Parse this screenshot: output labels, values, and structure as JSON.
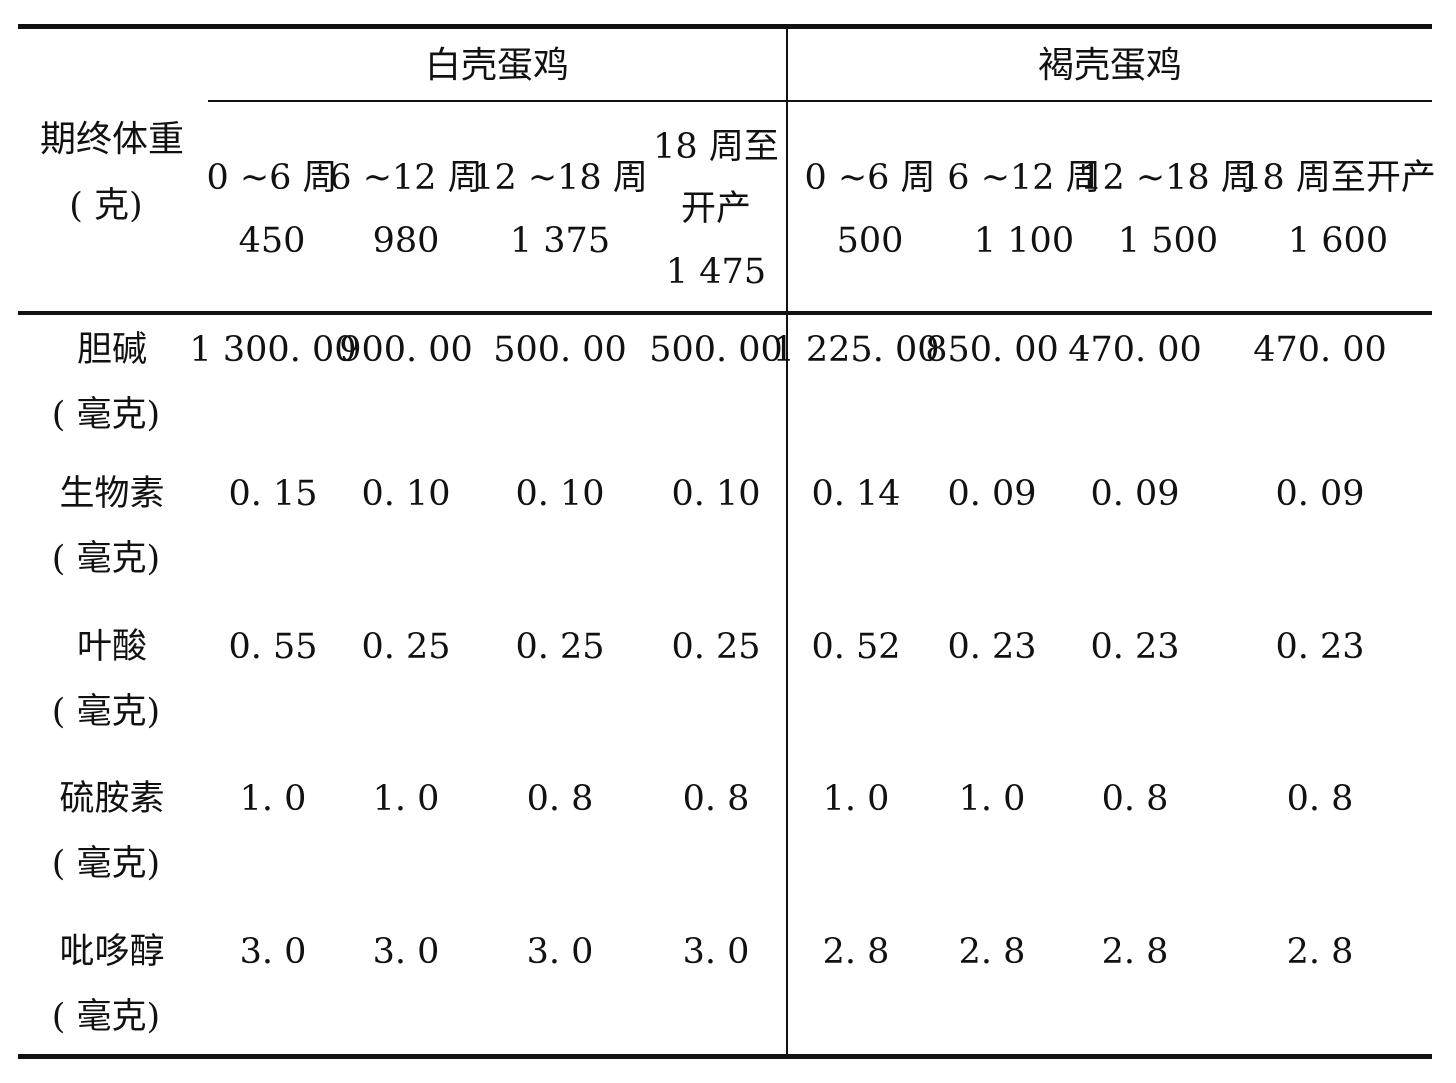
{
  "header": {
    "row_label": {
      "line1": "期终体重",
      "line2": "( 克)"
    },
    "groups": [
      {
        "name": "白壳蛋鸡",
        "columns": [
          {
            "period": "0 ~6 周",
            "weight": "450"
          },
          {
            "period": "6 ~12 周",
            "weight": "980"
          },
          {
            "period": "12 ~18 周",
            "weight": "1 375"
          },
          {
            "period_line1": "18 周至",
            "period_line2": "开产",
            "weight": "1 475"
          }
        ]
      },
      {
        "name": "褐壳蛋鸡",
        "columns": [
          {
            "period": "0 ~6 周",
            "weight": "500"
          },
          {
            "period": "6 ~12 周",
            "weight": "1 100"
          },
          {
            "period": "12 ~18 周",
            "weight": "1 500"
          },
          {
            "period": "18 周至开产",
            "weight": "1 600"
          }
        ]
      }
    ]
  },
  "rows": [
    {
      "name": "胆碱",
      "unit": "( 毫克)",
      "values": [
        "1 300. 00",
        "900. 00",
        "500. 00",
        "500. 00",
        "1 225. 00",
        "850. 00",
        "470. 00",
        "470. 00"
      ]
    },
    {
      "name": "生物素",
      "unit": "( 毫克)",
      "values": [
        "0. 15",
        "0. 10",
        "0. 10",
        "0. 10",
        "0. 14",
        "0. 09",
        "0. 09",
        "0. 09"
      ]
    },
    {
      "name": "叶酸",
      "unit": "( 毫克)",
      "values": [
        "0. 55",
        "0. 25",
        "0. 25",
        "0. 25",
        "0. 52",
        "0. 23",
        "0. 23",
        "0. 23"
      ]
    },
    {
      "name": "硫胺素",
      "unit": "( 毫克)",
      "values": [
        "1. 0",
        "1. 0",
        "0. 8",
        "0. 8",
        "1. 0",
        "1. 0",
        "0. 8",
        "0. 8"
      ]
    },
    {
      "name": "吡哆醇",
      "unit": "( 毫克)",
      "values": [
        "3. 0",
        "3. 0",
        "3. 0",
        "3. 0",
        "2. 8",
        "2. 8",
        "2. 8",
        "2. 8"
      ]
    }
  ]
}
